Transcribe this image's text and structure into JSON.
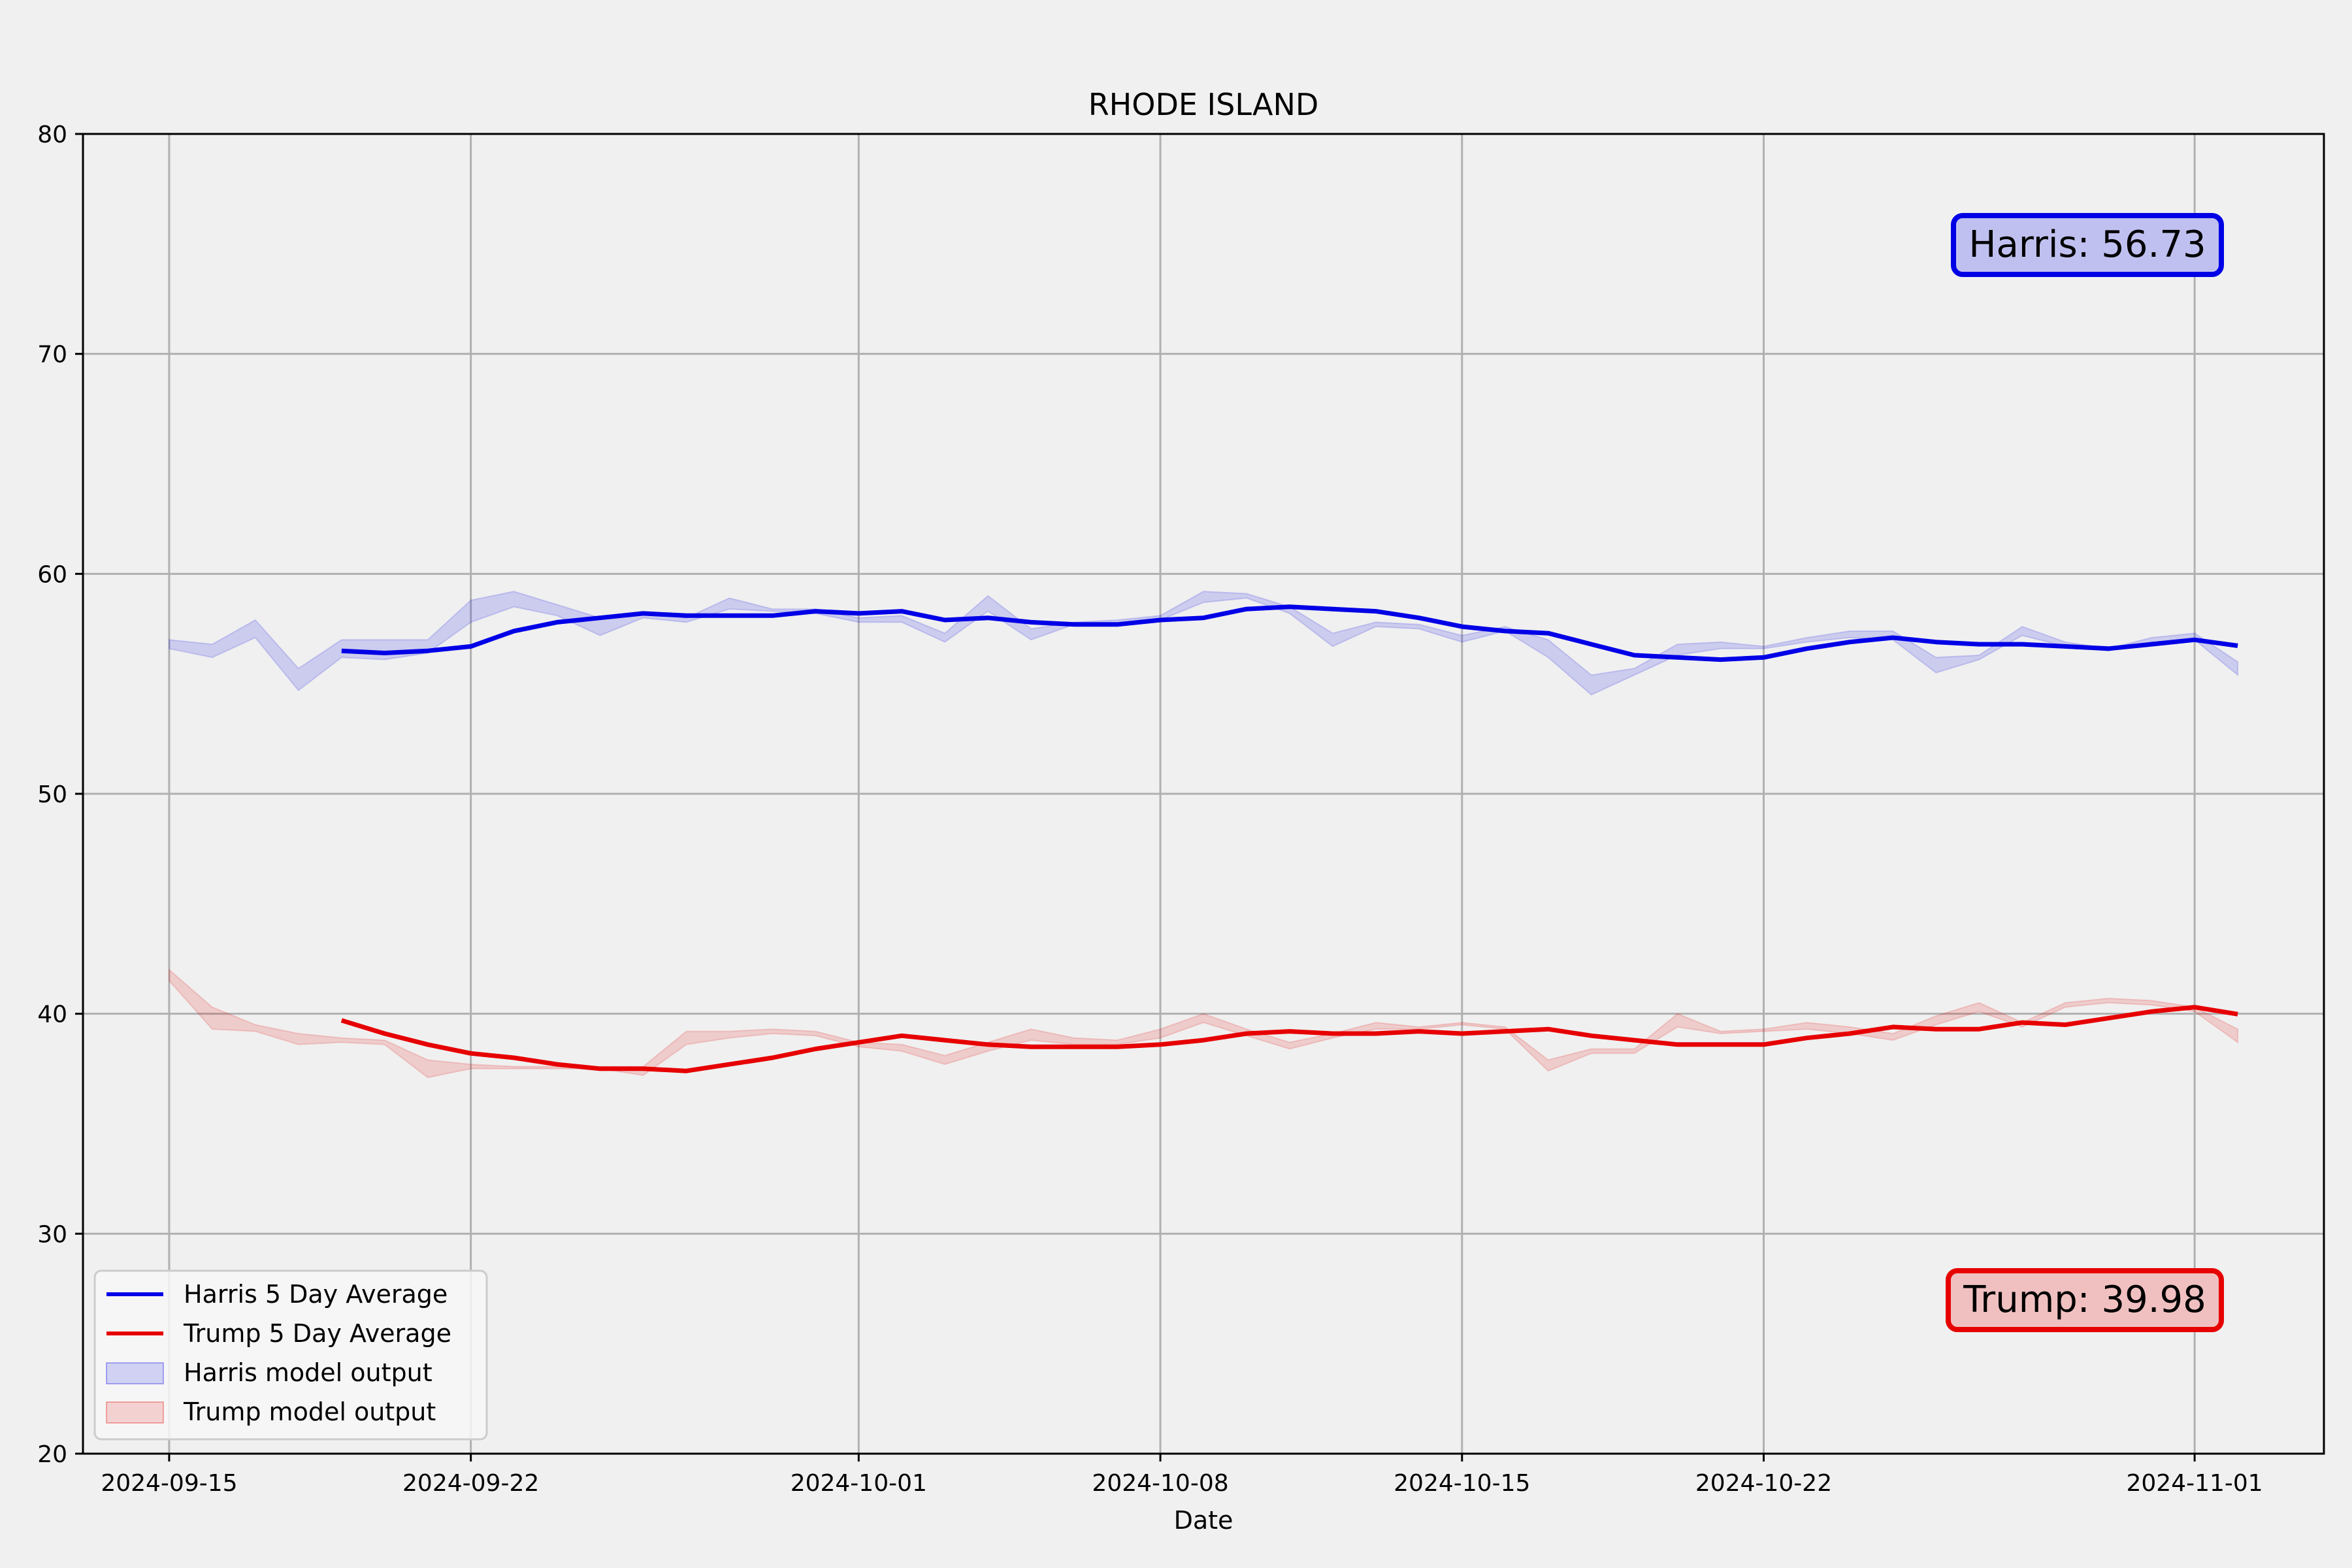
{
  "chart_data": {
    "type": "line",
    "title": "RHODE ISLAND",
    "xlabel": "Date",
    "ylabel": "",
    "ylim": [
      20,
      80
    ],
    "xlim": [
      "2024-09-13",
      "2024-11-04"
    ],
    "yticks": [
      20,
      30,
      40,
      50,
      60,
      70,
      80
    ],
    "xticks": [
      "2024-09-15",
      "2024-09-22",
      "2024-10-01",
      "2024-10-08",
      "2024-10-15",
      "2024-10-22",
      "2024-11-01"
    ],
    "grid": true,
    "legend_position": "lower-left",
    "series": [
      {
        "name": "Harris 5 Day Average",
        "color": "#0000e6",
        "x": [
          "2024-09-19",
          "2024-09-20",
          "2024-09-21",
          "2024-09-22",
          "2024-09-23",
          "2024-09-24",
          "2024-09-25",
          "2024-09-26",
          "2024-09-27",
          "2024-09-28",
          "2024-09-29",
          "2024-09-30",
          "2024-10-01",
          "2024-10-02",
          "2024-10-03",
          "2024-10-04",
          "2024-10-05",
          "2024-10-06",
          "2024-10-07",
          "2024-10-08",
          "2024-10-09",
          "2024-10-10",
          "2024-10-11",
          "2024-10-12",
          "2024-10-13",
          "2024-10-14",
          "2024-10-15",
          "2024-10-16",
          "2024-10-17",
          "2024-10-18",
          "2024-10-19",
          "2024-10-20",
          "2024-10-21",
          "2024-10-22",
          "2024-10-23",
          "2024-10-24",
          "2024-10-25",
          "2024-10-26",
          "2024-10-27",
          "2024-10-28",
          "2024-10-29",
          "2024-10-30",
          "2024-10-31",
          "2024-11-01",
          "2024-11-02"
        ],
        "values": [
          56.5,
          56.4,
          56.5,
          56.7,
          57.4,
          57.8,
          58.0,
          58.2,
          58.1,
          58.1,
          58.1,
          58.3,
          58.2,
          58.3,
          57.9,
          58.0,
          57.8,
          57.7,
          57.7,
          57.9,
          58.0,
          58.4,
          58.5,
          58.4,
          58.3,
          58.0,
          57.6,
          57.4,
          57.3,
          56.8,
          56.3,
          56.2,
          56.1,
          56.2,
          56.6,
          56.9,
          57.1,
          56.9,
          56.8,
          56.8,
          56.7,
          56.6,
          56.8,
          57.0,
          56.73
        ]
      },
      {
        "name": "Trump 5 Day Average",
        "color": "#e60000",
        "x": [
          "2024-09-19",
          "2024-09-20",
          "2024-09-21",
          "2024-09-22",
          "2024-09-23",
          "2024-09-24",
          "2024-09-25",
          "2024-09-26",
          "2024-09-27",
          "2024-09-28",
          "2024-09-29",
          "2024-09-30",
          "2024-10-01",
          "2024-10-02",
          "2024-10-03",
          "2024-10-04",
          "2024-10-05",
          "2024-10-06",
          "2024-10-07",
          "2024-10-08",
          "2024-10-09",
          "2024-10-10",
          "2024-10-11",
          "2024-10-12",
          "2024-10-13",
          "2024-10-14",
          "2024-10-15",
          "2024-10-16",
          "2024-10-17",
          "2024-10-18",
          "2024-10-19",
          "2024-10-20",
          "2024-10-21",
          "2024-10-22",
          "2024-10-23",
          "2024-10-24",
          "2024-10-25",
          "2024-10-26",
          "2024-10-27",
          "2024-10-28",
          "2024-10-29",
          "2024-10-30",
          "2024-10-31",
          "2024-11-01",
          "2024-11-02"
        ],
        "values": [
          39.7,
          39.1,
          38.6,
          38.2,
          38.0,
          37.7,
          37.5,
          37.5,
          37.4,
          37.7,
          38.0,
          38.4,
          38.7,
          39.0,
          38.8,
          38.6,
          38.5,
          38.5,
          38.5,
          38.6,
          38.8,
          39.1,
          39.2,
          39.1,
          39.1,
          39.2,
          39.1,
          39.2,
          39.3,
          39.0,
          38.8,
          38.6,
          38.6,
          38.6,
          38.9,
          39.1,
          39.4,
          39.3,
          39.3,
          39.6,
          39.5,
          39.8,
          40.1,
          40.3,
          39.98
        ]
      }
    ],
    "bands": [
      {
        "name": "Harris model output",
        "color": "#0000e6",
        "opacity": 0.15,
        "x": [
          "2024-09-15",
          "2024-09-16",
          "2024-09-17",
          "2024-09-18",
          "2024-09-19",
          "2024-09-20",
          "2024-09-21",
          "2024-09-22",
          "2024-09-23",
          "2024-09-24",
          "2024-09-25",
          "2024-09-26",
          "2024-09-27",
          "2024-09-28",
          "2024-09-29",
          "2024-09-30",
          "2024-10-01",
          "2024-10-02",
          "2024-10-03",
          "2024-10-04",
          "2024-10-05",
          "2024-10-06",
          "2024-10-07",
          "2024-10-08",
          "2024-10-09",
          "2024-10-10",
          "2024-10-11",
          "2024-10-12",
          "2024-10-13",
          "2024-10-14",
          "2024-10-15",
          "2024-10-16",
          "2024-10-17",
          "2024-10-18",
          "2024-10-19",
          "2024-10-20",
          "2024-10-21",
          "2024-10-22",
          "2024-10-23",
          "2024-10-24",
          "2024-10-25",
          "2024-10-26",
          "2024-10-27",
          "2024-10-28",
          "2024-10-29",
          "2024-10-30",
          "2024-10-31",
          "2024-11-01",
          "2024-11-02"
        ],
        "upper": [
          57.0,
          56.8,
          57.9,
          55.7,
          57.0,
          57.0,
          57.0,
          58.8,
          59.2,
          58.6,
          58.0,
          58.2,
          58.0,
          58.9,
          58.4,
          58.4,
          58.0,
          58.1,
          57.3,
          59.0,
          57.5,
          57.8,
          57.9,
          58.1,
          59.2,
          59.1,
          58.5,
          57.3,
          57.8,
          57.7,
          57.2,
          57.6,
          57.0,
          55.4,
          55.7,
          56.8,
          56.9,
          56.7,
          57.1,
          57.4,
          57.4,
          56.2,
          56.3,
          57.6,
          56.9,
          56.6,
          57.1,
          57.3,
          56.0
        ],
        "lower": [
          56.6,
          56.2,
          57.1,
          54.7,
          56.2,
          56.1,
          56.4,
          57.8,
          58.5,
          58.1,
          57.2,
          58.0,
          57.8,
          58.4,
          58.3,
          58.2,
          57.8,
          57.8,
          56.9,
          58.3,
          57.0,
          57.7,
          57.7,
          57.9,
          58.7,
          58.9,
          58.2,
          56.7,
          57.6,
          57.5,
          56.9,
          57.4,
          56.2,
          54.5,
          55.4,
          56.3,
          56.6,
          56.6,
          56.9,
          57.1,
          57.0,
          55.5,
          56.1,
          57.2,
          56.7,
          56.5,
          56.9,
          57.0,
          55.4
        ]
      },
      {
        "name": "Trump model output",
        "color": "#e60000",
        "opacity": 0.15,
        "x": [
          "2024-09-15",
          "2024-09-16",
          "2024-09-17",
          "2024-09-18",
          "2024-09-19",
          "2024-09-20",
          "2024-09-21",
          "2024-09-22",
          "2024-09-23",
          "2024-09-24",
          "2024-09-25",
          "2024-09-26",
          "2024-09-27",
          "2024-09-28",
          "2024-09-29",
          "2024-09-30",
          "2024-10-01",
          "2024-10-02",
          "2024-10-03",
          "2024-10-04",
          "2024-10-05",
          "2024-10-06",
          "2024-10-07",
          "2024-10-08",
          "2024-10-09",
          "2024-10-10",
          "2024-10-11",
          "2024-10-12",
          "2024-10-13",
          "2024-10-14",
          "2024-10-15",
          "2024-10-16",
          "2024-10-17",
          "2024-10-18",
          "2024-10-19",
          "2024-10-20",
          "2024-10-21",
          "2024-10-22",
          "2024-10-23",
          "2024-10-24",
          "2024-10-25",
          "2024-10-26",
          "2024-10-27",
          "2024-10-28",
          "2024-10-29",
          "2024-10-30",
          "2024-10-31",
          "2024-11-01",
          "2024-11-02"
        ],
        "upper": [
          42.0,
          40.3,
          39.5,
          39.1,
          38.9,
          38.8,
          37.9,
          37.7,
          37.6,
          37.6,
          37.6,
          37.6,
          39.2,
          39.2,
          39.3,
          39.2,
          38.7,
          38.6,
          38.1,
          38.7,
          39.3,
          38.9,
          38.8,
          39.3,
          40.0,
          39.3,
          38.7,
          39.1,
          39.6,
          39.4,
          39.6,
          39.4,
          37.9,
          38.4,
          38.4,
          40.0,
          39.2,
          39.3,
          39.6,
          39.4,
          39.1,
          39.9,
          40.5,
          39.6,
          40.5,
          40.7,
          40.6,
          40.3,
          39.3
        ],
        "lower": [
          41.5,
          39.3,
          39.2,
          38.6,
          38.7,
          38.6,
          37.1,
          37.5,
          37.5,
          37.5,
          37.5,
          37.2,
          38.6,
          38.9,
          39.1,
          39.0,
          38.5,
          38.3,
          37.7,
          38.3,
          38.8,
          38.6,
          38.6,
          38.9,
          39.6,
          39.0,
          38.4,
          38.9,
          39.3,
          39.3,
          39.5,
          39.3,
          37.4,
          38.2,
          38.2,
          39.4,
          39.1,
          39.2,
          39.3,
          39.1,
          38.8,
          39.5,
          40.1,
          39.4,
          40.3,
          40.5,
          40.4,
          40.1,
          38.7
        ]
      }
    ],
    "annotations": [
      {
        "text": "Harris: 56.73",
        "position": "top-right",
        "color": "#0000e6"
      },
      {
        "text": "Trump: 39.98",
        "position": "bottom-right",
        "color": "#e60000"
      }
    ]
  }
}
